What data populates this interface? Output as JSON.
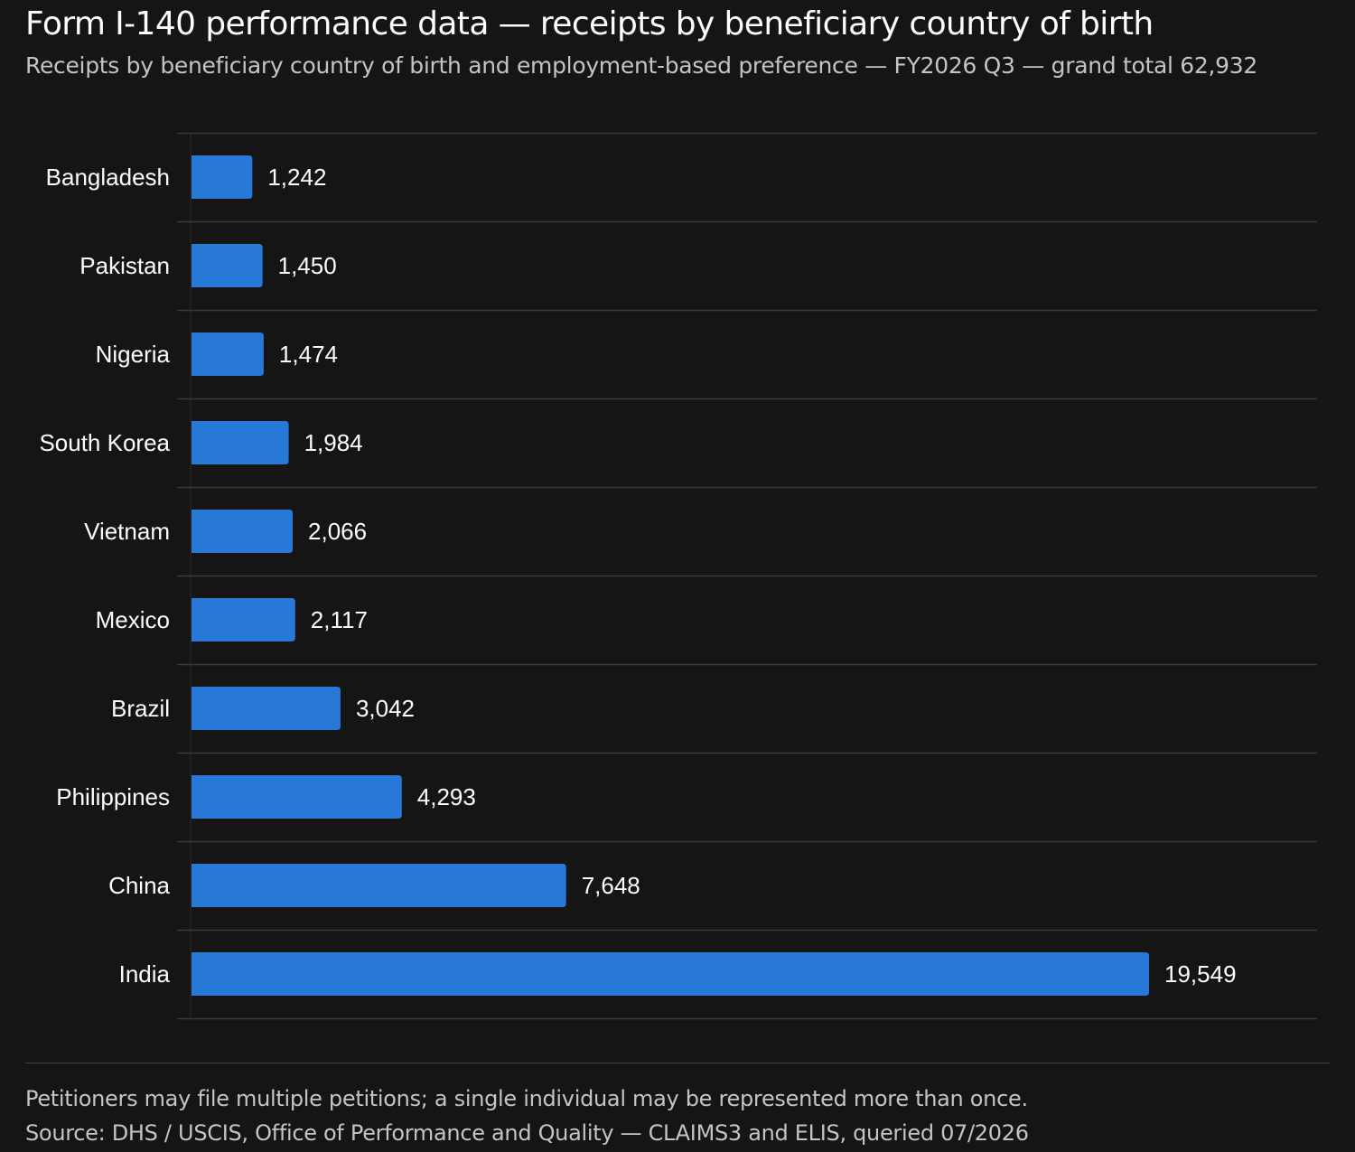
{
  "header": {
    "title": "Form I-140 performance data — receipts by beneficiary country of birth",
    "subtitle": "Receipts by beneficiary country of birth and employment-based preference — FY2026 Q3 — grand total 62,932"
  },
  "footer": {
    "note": "Petitioners may file multiple petitions; a single individual may be represented more than once.",
    "source": "Source: DHS / USCIS, Office of Performance and Quality — CLAIMS3 and ELIS, queried 07/2026"
  },
  "colors": {
    "background": "#151515",
    "bar": "#2878d8",
    "gridline": "#3a3a3a"
  },
  "chart_data": {
    "type": "bar",
    "orientation": "horizontal",
    "title": "Form I-140 performance data — receipts by beneficiary country of birth",
    "subtitle": "Receipts by beneficiary country of birth and employment-based preference — FY2026 Q3 — grand total 62,932",
    "categories": [
      "Bangladesh",
      "Pakistan",
      "Nigeria",
      "South Korea",
      "Vietnam",
      "Mexico",
      "Brazil",
      "Philippines",
      "China",
      "India"
    ],
    "values": [
      1242,
      1450,
      1474,
      1984,
      2066,
      2117,
      3042,
      4293,
      7648,
      19549
    ],
    "value_labels": [
      "1,242",
      "1,450",
      "1,474",
      "1,984",
      "2,066",
      "2,117",
      "3,042",
      "4,293",
      "7,648",
      "19,549"
    ],
    "xlim": [
      0,
      23000
    ],
    "grid": true,
    "legend": "none"
  }
}
